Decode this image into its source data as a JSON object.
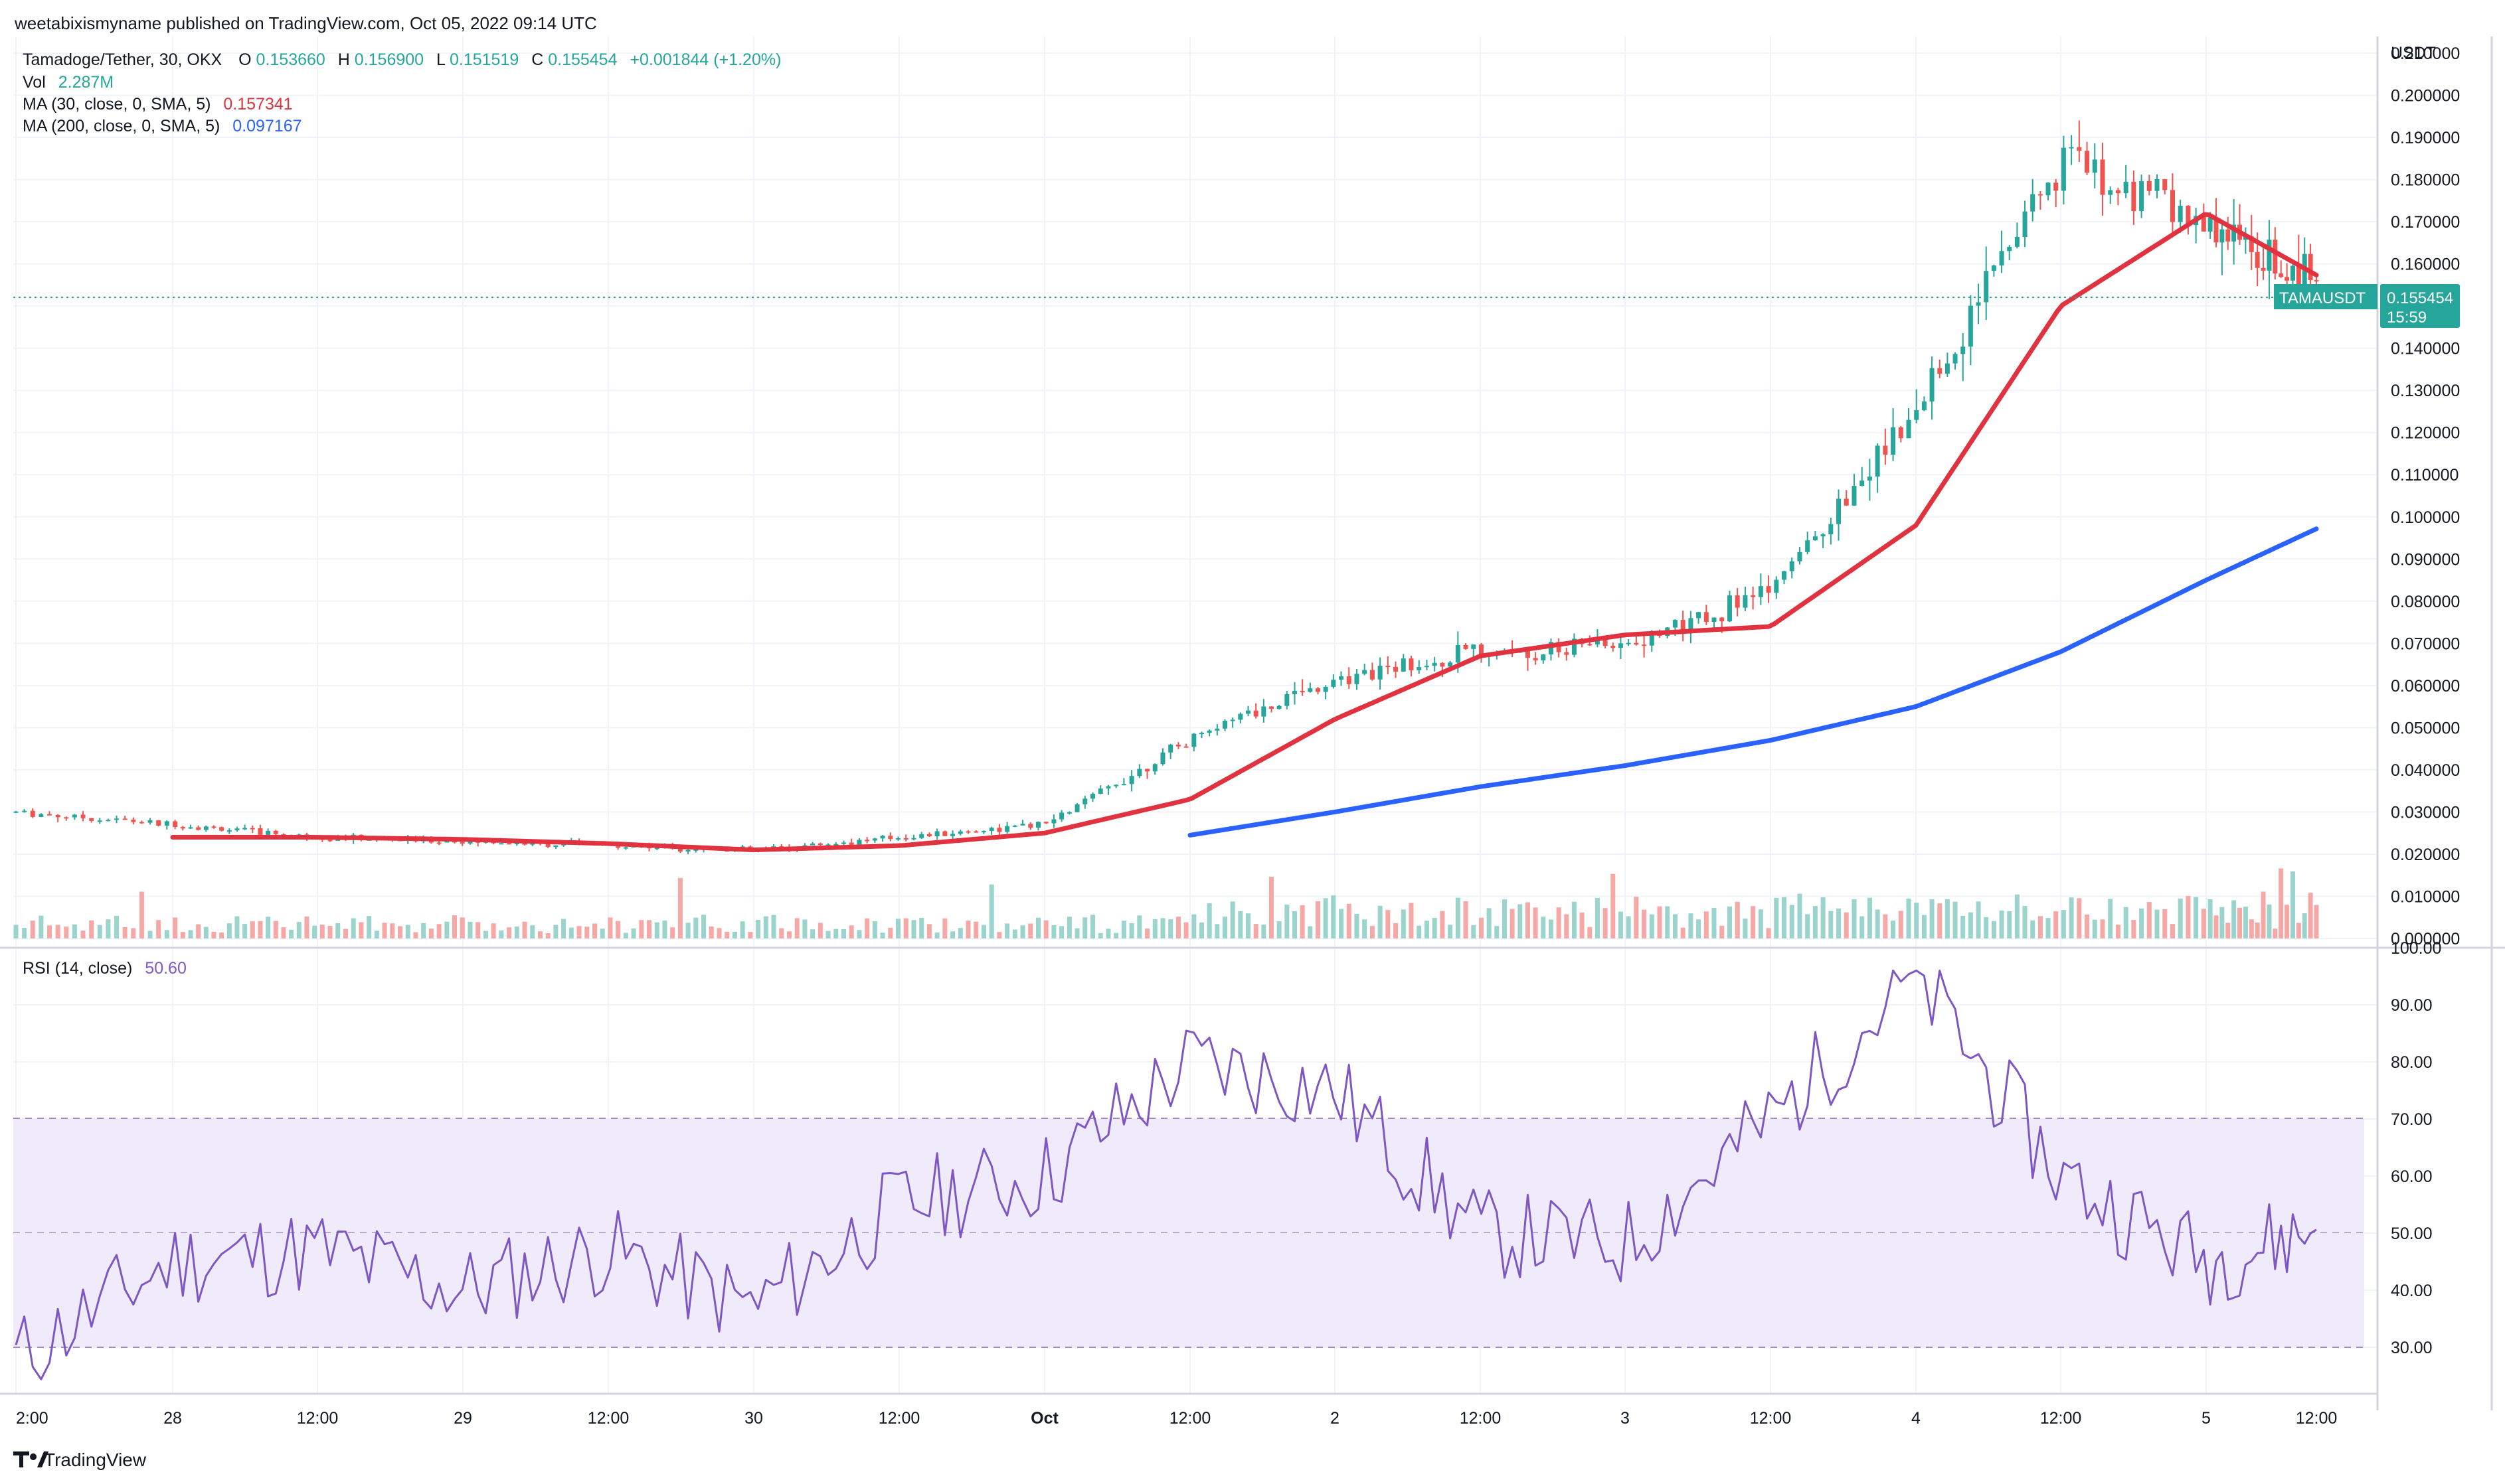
{
  "header": {
    "published": "weetabixismyname published on TradingView.com, Oct 05, 2022 09:14 UTC",
    "symbol": "Tamadoge/Tether, 30, OKX",
    "o_label": "O",
    "o_value": "0.153660",
    "h_label": "H",
    "h_value": "0.156900",
    "l_label": "L",
    "l_value": "0.151519",
    "c_label": "C",
    "c_value": "0.155454",
    "change": "+0.001844 (+1.20%)"
  },
  "indicators": {
    "vol_label": "Vol",
    "vol_value": "2.287M",
    "ma30_label": "MA (30, close, 0, SMA, 5)",
    "ma30_value": "0.157341",
    "ma200_label": "MA (200, close, 0, SMA, 5)",
    "ma200_value": "0.097167",
    "rsi_label": "RSI (14, close)",
    "rsi_value": "50.60"
  },
  "price_axis": {
    "unit": "USDT",
    "ticks": [
      "0.210000",
      "0.200000",
      "0.190000",
      "0.180000",
      "0.170000",
      "0.160000",
      "0.150000",
      "0.140000",
      "0.130000",
      "0.120000",
      "0.110000",
      "0.100000",
      "0.090000",
      "0.080000",
      "0.070000",
      "0.060000",
      "0.050000",
      "0.040000",
      "0.030000",
      "0.020000",
      "0.010000",
      "0.000000"
    ]
  },
  "rsi_axis": {
    "ticks": [
      "100.00",
      "90.00",
      "80.00",
      "70.00",
      "60.00",
      "50.00",
      "40.00",
      "30.00"
    ]
  },
  "price_label": {
    "symbol": "TAMAUSDT",
    "price": "0.155454",
    "countdown": "15:59"
  },
  "time_axis": [
    "2:00",
    "28",
    "12:00",
    "29",
    "12:00",
    "30",
    "12:00",
    "Oct",
    "12:00",
    "2",
    "12:00",
    "3",
    "12:00",
    "4",
    "12:00",
    "5",
    "12:00"
  ],
  "footer": {
    "brand": "TradingView"
  },
  "colors": {
    "up": "#26a69a",
    "down": "#ef5350",
    "ma30": "#e0323f",
    "ma200": "#2962ff",
    "rsi": "#7e57c2",
    "rsi_band": "#efebfa"
  },
  "chart_data": [
    {
      "type": "candlestick",
      "title": "Tamadoge/Tether, 30, OKX",
      "ylabel": "USDT",
      "ylim": [
        0,
        0.21
      ],
      "x": [
        "Sep 27 22:00",
        "Sep 28 00:00",
        "Sep 28 12:00",
        "Sep 29 00:00",
        "Sep 29 12:00",
        "Sep 30 00:00",
        "Sep 30 12:00",
        "Oct 1 00:00",
        "Oct 1 12:00",
        "Oct 2 00:00",
        "Oct 2 12:00",
        "Oct 3 00:00",
        "Oct 3 12:00",
        "Oct 4 00:00",
        "Oct 4 12:00",
        "Oct 5 00:00",
        "Oct 5 09:00"
      ],
      "series": [
        {
          "name": "Close",
          "values": [
            0.03,
            0.027,
            0.024,
            0.023,
            0.022,
            0.021,
            0.024,
            0.027,
            0.047,
            0.062,
            0.068,
            0.07,
            0.082,
            0.125,
            0.185,
            0.17,
            0.155454
          ]
        },
        {
          "name": "MA (30, close, 0, SMA, 5)",
          "values": [
            null,
            0.024,
            0.024,
            0.0235,
            0.0225,
            0.021,
            0.022,
            0.025,
            0.033,
            0.052,
            0.067,
            0.072,
            0.074,
            0.098,
            0.15,
            0.172,
            0.157341
          ]
        },
        {
          "name": "MA (200, close, 0, SMA, 5)",
          "values": [
            null,
            null,
            null,
            null,
            null,
            null,
            null,
            null,
            0.0245,
            0.03,
            0.036,
            0.041,
            0.047,
            0.055,
            0.068,
            0.085,
            0.097167
          ]
        }
      ]
    },
    {
      "type": "line",
      "title": "RSI (14, close)",
      "ylim": [
        20,
        100
      ],
      "bands": [
        30,
        50,
        70
      ],
      "x": [
        "Sep 27 22:00",
        "Sep 28 00:00",
        "Sep 28 12:00",
        "Sep 29 00:00",
        "Sep 29 12:00",
        "Sep 30 00:00",
        "Sep 30 12:00",
        "Oct 1 00:00",
        "Oct 1 12:00",
        "Oct 2 00:00",
        "Oct 2 12:00",
        "Oct 3 00:00",
        "Oct 3 12:00",
        "Oct 4 00:00",
        "Oct 4 12:00",
        "Oct 5 00:00",
        "Oct 5 09:00"
      ],
      "series": [
        {
          "name": "RSI",
          "values": [
            28,
            45,
            47,
            40,
            47,
            37,
            55,
            60,
            80,
            75,
            50,
            48,
            70,
            95,
            60,
            45,
            50.6
          ]
        }
      ]
    }
  ]
}
